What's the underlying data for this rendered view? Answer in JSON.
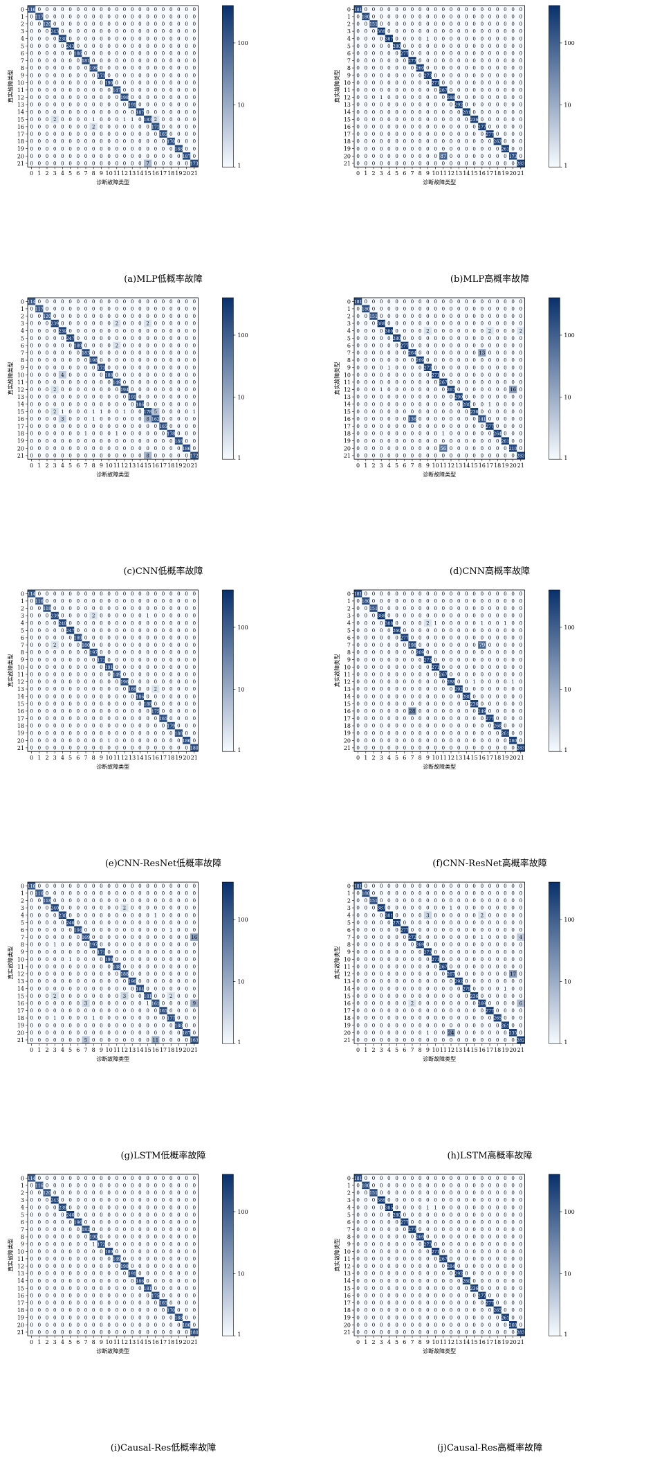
{
  "xlabel": "诊断故障类型",
  "ylabel": "真实故障类型",
  "colorbar_ticks": [
    "1",
    "10",
    "100"
  ],
  "colors": {
    "low": "#f7fbff",
    "high": "#08306b",
    "text_dark": "#000000",
    "text_light": "#ffffff"
  },
  "chart_data": [
    {
      "type": "heatmap",
      "caption": "(a)MLP低概率故障",
      "x": [
        0,
        1,
        2,
        3,
        4,
        5,
        6,
        7,
        8,
        9,
        10,
        11,
        12,
        13,
        14,
        15,
        16,
        17,
        18,
        19,
        20,
        21
      ],
      "y": [
        0,
        1,
        2,
        3,
        4,
        5,
        6,
        7,
        8,
        9,
        10,
        11,
        12,
        13,
        14,
        15,
        16,
        17,
        18,
        19,
        20,
        21
      ],
      "diag": [
        116,
        117,
        120,
        243,
        230,
        243,
        186,
        181,
        198,
        173,
        190,
        147,
        198,
        191,
        187,
        183,
        171,
        165,
        170,
        188,
        187,
        173
      ],
      "off": [
        [
          15,
          3,
          2
        ],
        [
          15,
          8,
          1
        ],
        [
          15,
          12,
          1
        ],
        [
          15,
          13,
          1
        ],
        [
          15,
          16,
          2
        ],
        [
          16,
          8,
          2
        ],
        [
          21,
          15,
          7
        ]
      ]
    },
    {
      "type": "heatmap",
      "caption": "(b)MLP高概率故障",
      "x": [
        0,
        1,
        2,
        3,
        4,
        5,
        6,
        7,
        8,
        9,
        10,
        11,
        12,
        13,
        14,
        15,
        16,
        17,
        18,
        19,
        20,
        21
      ],
      "y": [
        0,
        1,
        2,
        3,
        4,
        5,
        6,
        7,
        8,
        9,
        10,
        11,
        12,
        13,
        14,
        15,
        16,
        17,
        18,
        19,
        20,
        21
      ],
      "diag": [
        181,
        180,
        151,
        388,
        387,
        280,
        277,
        277,
        269,
        273,
        271,
        267,
        288,
        292,
        281,
        236,
        277,
        277,
        262,
        261,
        173,
        283
      ],
      "off": [
        [
          4,
          9,
          1
        ],
        [
          12,
          3,
          1
        ],
        [
          20,
          11,
          87
        ]
      ]
    },
    {
      "type": "heatmap",
      "caption": "(c)CNN低概率故障",
      "x": [
        0,
        1,
        2,
        3,
        4,
        5,
        6,
        7,
        8,
        9,
        10,
        11,
        12,
        13,
        14,
        15,
        16,
        17,
        18,
        19,
        20,
        21
      ],
      "y": [
        0,
        1,
        2,
        3,
        4,
        5,
        6,
        7,
        8,
        9,
        10,
        11,
        12,
        13,
        14,
        15,
        16,
        17,
        18,
        19,
        20,
        21
      ],
      "diag": [
        114,
        117,
        120,
        239,
        239,
        247,
        189,
        183,
        198,
        173,
        188,
        149,
        194,
        191,
        186,
        178,
        162,
        165,
        178,
        188,
        186,
        172
      ],
      "off": [
        [
          3,
          11,
          2
        ],
        [
          3,
          15,
          2
        ],
        [
          6,
          11,
          2
        ],
        [
          10,
          4,
          4
        ],
        [
          12,
          3,
          2
        ],
        [
          15,
          3,
          2
        ],
        [
          15,
          4,
          1
        ],
        [
          15,
          8,
          1
        ],
        [
          15,
          9,
          1
        ],
        [
          15,
          12,
          1
        ],
        [
          15,
          16,
          5
        ],
        [
          15,
          21,
          1
        ],
        [
          16,
          4,
          3
        ],
        [
          16,
          8,
          1
        ],
        [
          16,
          15,
          8
        ],
        [
          18,
          7,
          1
        ],
        [
          18,
          11,
          1
        ],
        [
          21,
          15,
          8
        ]
      ]
    },
    {
      "type": "heatmap",
      "caption": "(d)CNN高概率故障",
      "x": [
        0,
        1,
        2,
        3,
        4,
        5,
        6,
        7,
        8,
        9,
        10,
        11,
        12,
        13,
        14,
        15,
        16,
        17,
        18,
        19,
        20,
        21
      ],
      "y": [
        0,
        1,
        2,
        3,
        4,
        5,
        6,
        7,
        8,
        9,
        10,
        11,
        12,
        13,
        14,
        15,
        16,
        17,
        18,
        19,
        20,
        21
      ],
      "diag": [
        181,
        180,
        151,
        388,
        380,
        280,
        277,
        264,
        269,
        272,
        271,
        267,
        267,
        290,
        280,
        236,
        141,
        277,
        264,
        261,
        210,
        283
      ],
      "off": [
        [
          4,
          9,
          2
        ],
        [
          4,
          17,
          2
        ],
        [
          4,
          21,
          2
        ],
        [
          7,
          16,
          13
        ],
        [
          9,
          4,
          1
        ],
        [
          12,
          3,
          1
        ],
        [
          12,
          20,
          16
        ],
        [
          14,
          17,
          1
        ],
        [
          16,
          7,
          136
        ],
        [
          18,
          11,
          1
        ],
        [
          20,
          11,
          56
        ]
      ]
    },
    {
      "type": "heatmap",
      "caption": "(e)CNN-ResNet低概率故障",
      "x": [
        0,
        1,
        2,
        3,
        4,
        5,
        6,
        7,
        8,
        9,
        10,
        11,
        12,
        13,
        14,
        15,
        16,
        17,
        18,
        19,
        20,
        21
      ],
      "y": [
        0,
        1,
        2,
        3,
        4,
        5,
        6,
        7,
        8,
        9,
        10,
        11,
        12,
        13,
        14,
        15,
        16,
        17,
        18,
        19,
        20,
        21
      ],
      "diag": [
        114,
        116,
        118,
        239,
        240,
        247,
        189,
        180,
        197,
        171,
        191,
        149,
        196,
        188,
        186,
        188,
        175,
        165,
        179,
        188,
        186,
        180
      ],
      "off": [
        [
          3,
          8,
          2
        ],
        [
          3,
          15,
          1
        ],
        [
          7,
          3,
          2
        ],
        [
          13,
          16,
          2
        ],
        [
          20,
          10,
          1
        ]
      ]
    },
    {
      "type": "heatmap",
      "caption": "(f)CNN-ResNet高概率故障",
      "x": [
        0,
        1,
        2,
        3,
        4,
        5,
        6,
        7,
        8,
        9,
        10,
        11,
        12,
        13,
        14,
        15,
        16,
        17,
        18,
        19,
        20,
        21
      ],
      "y": [
        0,
        1,
        2,
        3,
        4,
        5,
        6,
        7,
        8,
        9,
        10,
        11,
        12,
        13,
        14,
        15,
        16,
        17,
        18,
        19,
        20,
        21
      ],
      "diag": [
        181,
        180,
        151,
        388,
        388,
        269,
        277,
        198,
        269,
        273,
        271,
        267,
        288,
        292,
        280,
        236,
        249,
        277,
        268,
        261,
        260,
        283
      ],
      "off": [
        [
          4,
          9,
          2
        ],
        [
          4,
          10,
          1
        ],
        [
          4,
          16,
          1
        ],
        [
          4,
          19,
          1
        ],
        [
          7,
          16,
          79
        ],
        [
          12,
          15,
          1
        ],
        [
          12,
          20,
          1
        ],
        [
          16,
          7,
          28
        ]
      ]
    },
    {
      "type": "heatmap",
      "caption": "(g)LSTM低概率故障",
      "x": [
        0,
        1,
        2,
        3,
        4,
        5,
        6,
        7,
        8,
        9,
        10,
        11,
        12,
        13,
        14,
        15,
        16,
        17,
        18,
        19,
        20,
        21
      ],
      "y": [
        0,
        1,
        2,
        3,
        4,
        5,
        6,
        7,
        8,
        9,
        10,
        11,
        12,
        13,
        14,
        15,
        16,
        17,
        18,
        19,
        20,
        21
      ],
      "diag": [
        116,
        116,
        118,
        240,
        230,
        246,
        194,
        169,
        197,
        171,
        190,
        148,
        188,
        196,
        184,
        181,
        161,
        165,
        177,
        188,
        187,
        163
      ],
      "off": [
        [
          3,
          12,
          2
        ],
        [
          4,
          16,
          1
        ],
        [
          6,
          18,
          1
        ],
        [
          7,
          21,
          16
        ],
        [
          8,
          3,
          1
        ],
        [
          10,
          5,
          1
        ],
        [
          15,
          3,
          2
        ],
        [
          15,
          12,
          3
        ],
        [
          15,
          18,
          2
        ],
        [
          16,
          7,
          3
        ],
        [
          16,
          15,
          1
        ],
        [
          16,
          21,
          9
        ],
        [
          18,
          3,
          1
        ],
        [
          18,
          8,
          1
        ],
        [
          21,
          7,
          5
        ],
        [
          21,
          16,
          11
        ]
      ]
    },
    {
      "type": "heatmap",
      "caption": "(h)LSTM高概率故障",
      "x": [
        0,
        1,
        2,
        3,
        4,
        5,
        6,
        7,
        8,
        9,
        10,
        11,
        12,
        13,
        14,
        15,
        16,
        17,
        18,
        19,
        20,
        21
      ],
      "y": [
        0,
        1,
        2,
        3,
        4,
        5,
        6,
        7,
        8,
        9,
        10,
        11,
        12,
        13,
        14,
        15,
        16,
        17,
        18,
        19,
        20,
        21
      ],
      "diag": [
        181,
        180,
        151,
        387,
        381,
        270,
        277,
        272,
        269,
        273,
        271,
        267,
        267,
        292,
        279,
        236,
        269,
        277,
        265,
        261,
        235,
        282
      ],
      "off": [
        [
          3,
          12,
          1
        ],
        [
          4,
          9,
          3
        ],
        [
          4,
          16,
          2
        ],
        [
          7,
          16,
          1
        ],
        [
          7,
          21,
          4
        ],
        [
          12,
          20,
          17
        ],
        [
          14,
          19,
          1
        ],
        [
          16,
          7,
          2
        ],
        [
          16,
          21,
          6
        ],
        [
          20,
          9,
          1
        ],
        [
          20,
          12,
          24
        ]
      ]
    },
    {
      "type": "heatmap",
      "caption": "(i)Causal-Res低概率故障",
      "x": [
        0,
        1,
        2,
        3,
        4,
        5,
        6,
        7,
        8,
        9,
        10,
        11,
        12,
        13,
        14,
        15,
        16,
        17,
        18,
        19,
        20,
        21
      ],
      "y": [
        0,
        1,
        2,
        3,
        4,
        5,
        6,
        7,
        8,
        9,
        10,
        11,
        12,
        13,
        14,
        15,
        16,
        17,
        18,
        19,
        20,
        21
      ],
      "diag": [
        114,
        116,
        120,
        243,
        239,
        246,
        196,
        182,
        190,
        172,
        189,
        149,
        198,
        191,
        186,
        181,
        175,
        165,
        170,
        188,
        186,
        180
      ],
      "off": [
        [
          9,
          8,
          1
        ]
      ]
    },
    {
      "type": "heatmap",
      "caption": "(j)Causal-Res高概率故障",
      "x": [
        0,
        1,
        2,
        3,
        4,
        5,
        6,
        7,
        8,
        9,
        10,
        11,
        12,
        13,
        14,
        15,
        16,
        17,
        18,
        19,
        20,
        21
      ],
      "y": [
        0,
        1,
        2,
        3,
        4,
        5,
        6,
        7,
        8,
        9,
        10,
        11,
        12,
        13,
        14,
        15,
        16,
        17,
        18,
        19,
        20,
        21
      ],
      "diag": [
        181,
        180,
        151,
        388,
        385,
        280,
        277,
        277,
        269,
        273,
        271,
        267,
        284,
        292,
        280,
        236,
        277,
        277,
        265,
        261,
        260,
        283
      ],
      "off": [
        [
          4,
          9,
          1
        ],
        [
          4,
          10,
          1
        ]
      ]
    }
  ]
}
